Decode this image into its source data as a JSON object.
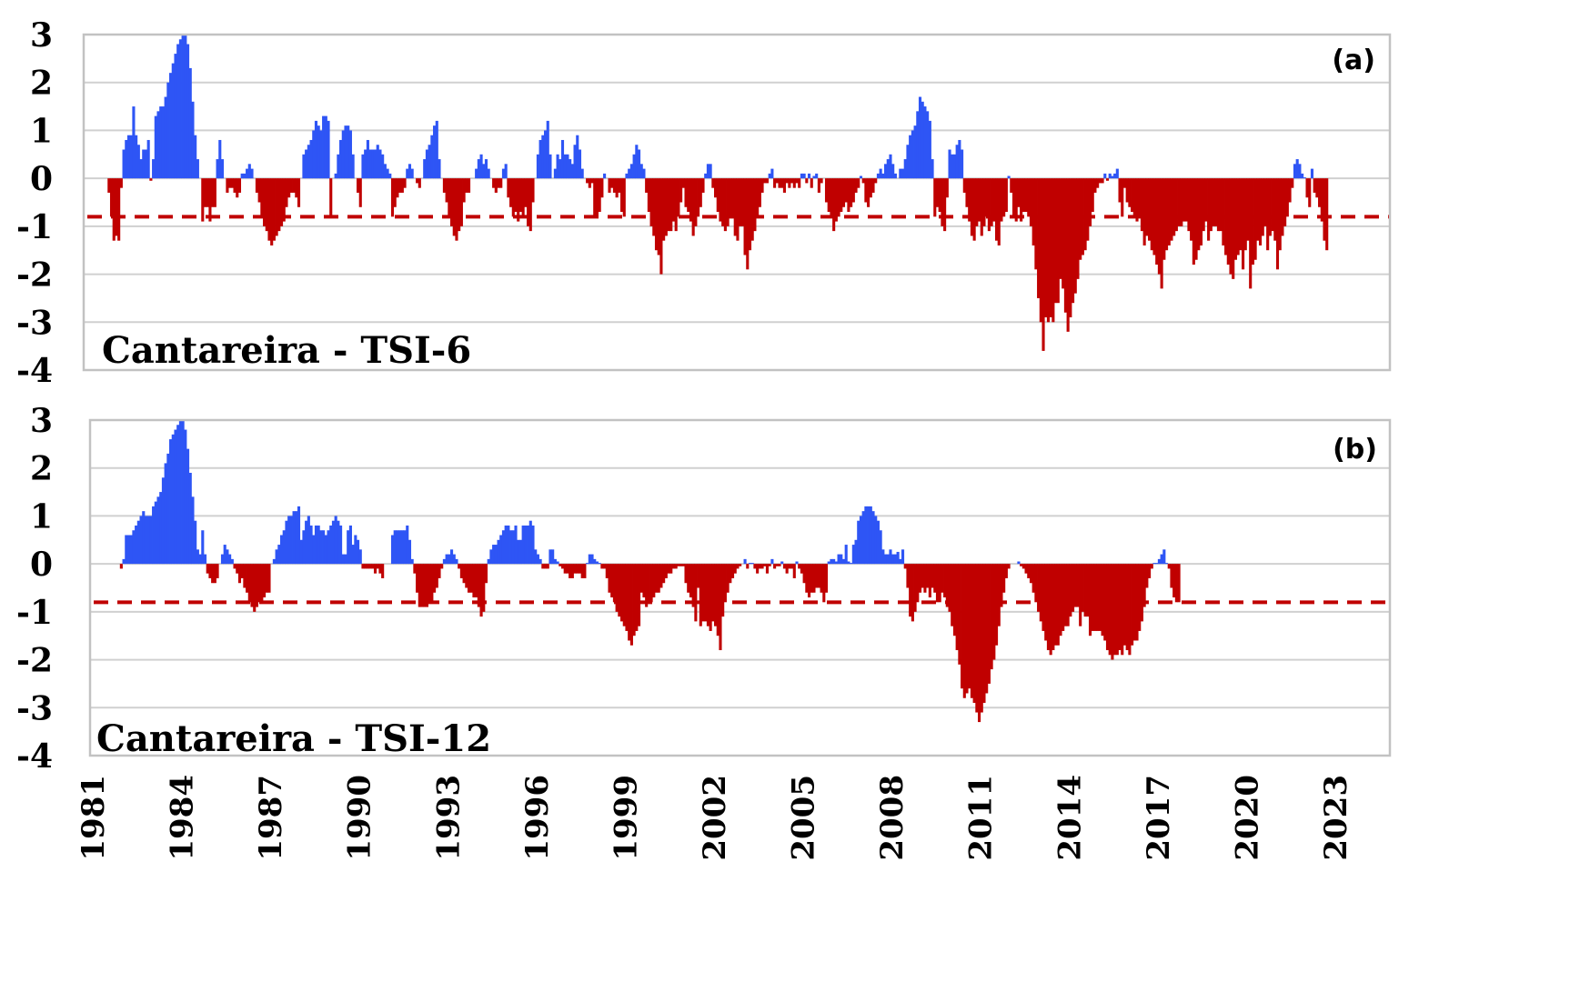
{
  "chart_data": [
    {
      "type": "bar",
      "panel_label": "(a)",
      "title": "Cantareira - TSI-6",
      "xlabel": "",
      "ylabel": "",
      "ylim": [
        -4,
        3
      ],
      "yticks": [
        "3",
        "2",
        "1",
        "0",
        "-1",
        "-2",
        "-3",
        "-4"
      ],
      "xticks": [
        "1981",
        "1984",
        "1987",
        "1990",
        "1993",
        "1996",
        "1999",
        "2002",
        "2005",
        "2008",
        "2011",
        "2014",
        "2017",
        "2020",
        "2023"
      ],
      "x_start": "1981-01",
      "x_step": "month",
      "grid": true,
      "threshold": {
        "value": -0.8,
        "style": "dashed",
        "color": "#c00000"
      },
      "colors": {
        "positive": "#2e55f5",
        "negative": "#c00000"
      },
      "values": [
        0,
        0,
        0,
        0,
        0,
        0,
        -0.3,
        -0.8,
        -1.3,
        -1.2,
        -1.3,
        -0.2,
        0.6,
        0.8,
        0.9,
        0.9,
        1.5,
        0.9,
        0.7,
        0.4,
        0.6,
        0.6,
        0.8,
        -0.05,
        0.4,
        1.3,
        1.4,
        1.5,
        1.5,
        1.7,
        2.0,
        2.2,
        2.4,
        2.6,
        2.8,
        2.9,
        3.0,
        3.0,
        2.8,
        2.3,
        1.6,
        0.9,
        0.4,
        0.0,
        -0.9,
        -0.6,
        -0.6,
        -0.9,
        -0.6,
        -0.6,
        0.4,
        0.8,
        0.4,
        0,
        -0.3,
        -0.2,
        -0.2,
        -0.3,
        -0.4,
        -0.3,
        0.1,
        0.1,
        0.2,
        0.3,
        0.2,
        0,
        -0.3,
        -0.5,
        -0.8,
        -1.0,
        -1.1,
        -1.3,
        -1.4,
        -1.3,
        -1.2,
        -1.1,
        -1.0,
        -0.9,
        -0.6,
        -0.4,
        -0.3,
        -0.3,
        -0.4,
        -0.6,
        0,
        0.5,
        0.6,
        0.7,
        0.8,
        1.0,
        1.2,
        1.1,
        1.0,
        1.3,
        1.3,
        1.2,
        -0.8,
        0,
        0.1,
        0.5,
        0.8,
        1.0,
        1.1,
        1.1,
        1.0,
        0.5,
        0,
        -0.3,
        -0.6,
        0.5,
        0.6,
        0.8,
        0.6,
        0.6,
        0.6,
        0.7,
        0.6,
        0.5,
        0.3,
        0.2,
        0.1,
        -0.8,
        -0.6,
        -0.4,
        -0.3,
        -0.3,
        -0.2,
        0.2,
        0.3,
        0.2,
        0,
        -0.1,
        -0.2,
        0,
        0.4,
        0.6,
        0.7,
        0.9,
        1.1,
        1.2,
        0.4,
        0,
        -0.3,
        -0.5,
        -0.8,
        -1.0,
        -1.2,
        -1.3,
        -1.1,
        -1.0,
        -0.5,
        -0.3,
        -0.3,
        0,
        0,
        0.2,
        0.4,
        0.5,
        0.3,
        0.4,
        0.2,
        0,
        -0.2,
        -0.3,
        -0.2,
        -0.2,
        0.2,
        0.3,
        -0.4,
        -0.6,
        -0.8,
        -0.7,
        -0.9,
        -0.7,
        -0.8,
        -0.6,
        -1.0,
        -1.1,
        -0.5,
        0,
        0.5,
        0.8,
        0.9,
        1.0,
        1.2,
        0.5,
        0,
        0.2,
        0.5,
        0.4,
        0.8,
        0.5,
        0.5,
        0.4,
        0.3,
        0.7,
        0.9,
        0.6,
        0.2,
        0,
        -0.1,
        -0.2,
        -0.1,
        -0.8,
        -0.8,
        -0.7,
        -0.4,
        0.1,
        0,
        -0.3,
        -0.2,
        -0.3,
        -0.4,
        -0.3,
        -0.7,
        -0.8,
        0.1,
        0.2,
        0.3,
        0.5,
        0.7,
        0.6,
        0.3,
        0.2,
        -0.3,
        -0.7,
        -1.0,
        -1.2,
        -1.5,
        -1.6,
        -2.0,
        -1.3,
        -1.2,
        -1.1,
        -1.1,
        -0.9,
        -1.1,
        -0.8,
        -0.5,
        -0.2,
        -0.6,
        -0.7,
        -0.9,
        -1.2,
        -1.0,
        -0.8,
        -0.6,
        -0.3,
        0.1,
        0.3,
        0.3,
        -0.2,
        -0.4,
        -0.7,
        -0.9,
        -1.0,
        -1.1,
        -1.0,
        -0.8,
        -0.8,
        -1.2,
        -1.3,
        -1.0,
        -1.0,
        -1.6,
        -1.9,
        -1.5,
        -1.3,
        -1.1,
        -0.8,
        -0.6,
        -0.3,
        -0.1,
        -0.1,
        0.1,
        0.2,
        -0.2,
        -0.1,
        -0.2,
        -0.2,
        -0.3,
        -0.1,
        -0.2,
        -0.1,
        -0.2,
        -0.1,
        -0.2,
        0.1,
        0.1,
        -0.1,
        0.1,
        -0.2,
        0.05,
        0.1,
        -0.3,
        -0.1,
        0,
        -0.5,
        -0.7,
        -0.8,
        -1.1,
        -0.9,
        -0.8,
        -0.7,
        -0.6,
        -0.5,
        -0.7,
        -0.6,
        -0.5,
        -0.3,
        -0.2,
        0.05,
        -0.1,
        -0.5,
        -0.6,
        -0.4,
        -0.3,
        -0.1,
        0.1,
        0.2,
        0.1,
        0.3,
        0.4,
        0.5,
        0.3,
        0.1,
        0,
        0.2,
        0.2,
        0.4,
        0.7,
        0.9,
        1.0,
        1.1,
        1.4,
        1.7,
        1.6,
        1.5,
        1.4,
        1.2,
        0.4,
        -0.8,
        -0.6,
        -0.7,
        -1.0,
        -1.1,
        -0.4,
        0.6,
        0.5,
        0.5,
        0.7,
        0.8,
        0.6,
        -0.3,
        -0.6,
        -0.9,
        -1.2,
        -1.3,
        -1.0,
        -0.9,
        -1.2,
        -1.0,
        -0.8,
        -1.1,
        -1.0,
        -0.9,
        -1.3,
        -1.4,
        -0.9,
        -0.8,
        -0.7,
        0.05,
        -0.3,
        -0.8,
        -0.9,
        -0.6,
        -0.9,
        -0.7,
        -0.7,
        -0.8,
        -1.0,
        -1.4,
        -1.9,
        -2.5,
        -3.0,
        -3.6,
        -2.9,
        -3.0,
        -2.9,
        -3.0,
        -2.6,
        -2.6,
        -2.1,
        -2.3,
        -2.8,
        -3.2,
        -2.9,
        -2.6,
        -2.4,
        -2.1,
        -1.7,
        -1.6,
        -1.5,
        -1.3,
        -1.0,
        -0.7,
        -0.3,
        -0.2,
        -0.1,
        -0.1,
        0.1,
        -0.05,
        0.1,
        0.05,
        0.1,
        0.2,
        -0.5,
        -0.8,
        -0.2,
        -0.5,
        -0.6,
        -0.7,
        -0.8,
        -0.9,
        -0.8,
        -1.1,
        -1.4,
        -1.2,
        -1.3,
        -1.5,
        -1.6,
        -1.8,
        -2.0,
        -2.3,
        -1.7,
        -1.5,
        -1.4,
        -1.3,
        -1.2,
        -1.1,
        -1.0,
        -1.0,
        -0.9,
        -0.9,
        -1.1,
        -1.3,
        -1.8,
        -1.7,
        -1.5,
        -1.4,
        -1.1,
        -0.9,
        -1.3,
        -1.1,
        -1.0,
        -1.0,
        -1.1,
        -1.1,
        -1.4,
        -1.6,
        -1.8,
        -2.0,
        -2.1,
        -1.7,
        -1.6,
        -1.5,
        -1.9,
        -1.5,
        -1.3,
        -2.3,
        -1.8,
        -1.7,
        -1.3,
        -1.4,
        -1.2,
        -1.0,
        -1.5,
        -1.2,
        -1.1,
        -1.3,
        -1.9,
        -1.5,
        -1.2,
        -1.0,
        -0.8,
        -0.5,
        -0.2,
        0.3,
        0.4,
        0.3,
        0.1,
        0.02,
        -0.4,
        -0.6,
        0.2,
        -0.3,
        -0.4,
        -0.6,
        -0.9,
        -1.3,
        -1.5
      ]
    },
    {
      "type": "bar",
      "panel_label": "(b)",
      "title": "Cantareira - TSI-12",
      "xlabel": "",
      "ylabel": "",
      "ylim": [
        -4,
        3
      ],
      "yticks": [
        "3",
        "2",
        "1",
        "0",
        "-1",
        "-2",
        "-3",
        "-4"
      ],
      "xticks": [
        "1981",
        "1984",
        "1987",
        "1990",
        "1993",
        "1996",
        "1999",
        "2002",
        "2005",
        "2008",
        "2011",
        "2014",
        "2017",
        "2020",
        "2023"
      ],
      "x_start": "1981-01",
      "x_step": "month",
      "grid": true,
      "threshold": {
        "value": -0.8,
        "style": "dashed",
        "color": "#c00000"
      },
      "colors": {
        "positive": "#2e55f5",
        "negative": "#c00000"
      },
      "values": [
        0,
        0,
        0,
        0,
        0,
        0,
        0,
        0,
        0,
        0,
        0,
        -0.1,
        0.1,
        0.6,
        0.6,
        0.6,
        0.7,
        0.8,
        0.9,
        1.0,
        1.1,
        1.0,
        1.0,
        1.0,
        1.2,
        1.3,
        1.4,
        1.5,
        1.8,
        2.1,
        2.3,
        2.6,
        2.7,
        2.8,
        2.9,
        3.0,
        3.0,
        2.8,
        2.4,
        1.9,
        1.4,
        0.9,
        0.3,
        0.2,
        0.7,
        0.2,
        -0.2,
        -0.3,
        -0.4,
        -0.4,
        -0.3,
        0,
        0.2,
        0.4,
        0.3,
        0.2,
        0.1,
        -0.1,
        -0.2,
        -0.4,
        -0.3,
        -0.5,
        -0.6,
        -0.8,
        -0.9,
        -1.0,
        -0.9,
        -0.8,
        -0.8,
        -0.7,
        -0.6,
        -0.6,
        0,
        0.1,
        0.3,
        0.4,
        0.6,
        0.7,
        0.9,
        1.0,
        1.0,
        1.1,
        1.1,
        1.2,
        0.5,
        0.7,
        0.9,
        1.0,
        0.8,
        0.6,
        0.8,
        0.8,
        0.7,
        0.7,
        0.6,
        0.7,
        0.8,
        0.9,
        1.0,
        0.9,
        0.8,
        0.2,
        0.2,
        0.7,
        0.8,
        0.4,
        0.6,
        0.5,
        0.3,
        -0.1,
        -0.1,
        -0.1,
        -0.1,
        -0.1,
        -0.2,
        -0.1,
        -0.2,
        -0.3,
        0,
        0,
        0,
        0.6,
        0.7,
        0.7,
        0.7,
        0.7,
        0.7,
        0.8,
        0.5,
        0.1,
        -0.2,
        -0.6,
        -0.9,
        -0.9,
        -0.9,
        -0.9,
        -0.8,
        -0.8,
        -0.6,
        -0.5,
        -0.3,
        -0.1,
        0.1,
        0.2,
        0.2,
        0.3,
        0.2,
        0.1,
        -0.1,
        -0.3,
        -0.4,
        -0.5,
        -0.6,
        -0.6,
        -0.7,
        -0.7,
        -0.9,
        -1.1,
        -1.0,
        -0.4,
        0.1,
        0.3,
        0.4,
        0.4,
        0.5,
        0.6,
        0.7,
        0.8,
        0.8,
        0.7,
        0.7,
        0.8,
        0.5,
        0.5,
        0.8,
        0.8,
        0.8,
        0.9,
        0.8,
        0.3,
        0.2,
        0.1,
        -0.1,
        -0.1,
        -0.1,
        0.3,
        0.3,
        0.1,
        0.05,
        -0.05,
        -0.1,
        -0.2,
        -0.2,
        -0.3,
        -0.3,
        -0.2,
        -0.2,
        -0.2,
        -0.3,
        -0.3,
        0.02,
        0.2,
        0.2,
        0.1,
        0.05,
        0.02,
        -0.1,
        -0.1,
        -0.3,
        -0.6,
        -0.7,
        -0.8,
        -1.0,
        -1.1,
        -1.2,
        -1.3,
        -1.4,
        -1.6,
        -1.7,
        -1.5,
        -1.4,
        -1.3,
        -0.6,
        -0.7,
        -0.9,
        -0.8,
        -0.8,
        -0.7,
        -0.6,
        -0.6,
        -0.5,
        -0.4,
        -0.3,
        -0.2,
        -0.2,
        -0.1,
        -0.1,
        -0.05,
        -0.05,
        -0.05,
        -0.4,
        -0.6,
        -0.7,
        -0.9,
        -1.2,
        -0.5,
        -1.3,
        -1.2,
        -1.2,
        -1.3,
        -1.4,
        -1.2,
        -1.3,
        -1.5,
        -1.8,
        -1.1,
        -0.8,
        -0.6,
        -0.4,
        -0.3,
        -0.2,
        -0.1,
        -0.05,
        0,
        0.1,
        -0.1,
        0.02,
        0.02,
        -0.1,
        -0.2,
        -0.1,
        -0.1,
        -0.05,
        -0.2,
        -0.05,
        0.1,
        -0.1,
        -0.05,
        -0.05,
        0.05,
        -0.1,
        -0.2,
        -0.1,
        -0.1,
        -0.3,
        0.05,
        -0.1,
        -0.2,
        -0.4,
        -0.6,
        -0.7,
        -0.6,
        -0.6,
        -0.5,
        -0.5,
        -0.6,
        -0.8,
        -0.6,
        0.05,
        0.1,
        0.1,
        0.05,
        0.2,
        0.2,
        0.1,
        0.4,
        0.05,
        0.02,
        0.4,
        0.5,
        0.9,
        1.0,
        1.1,
        1.2,
        1.2,
        1.2,
        1.1,
        1.0,
        0.9,
        0.7,
        0.3,
        0.2,
        0.2,
        0.3,
        0.2,
        0.2,
        0.25,
        0.1,
        0.3,
        -0.1,
        -0.5,
        -1.1,
        -1.2,
        -1.0,
        -0.8,
        -0.6,
        -0.5,
        -0.6,
        -0.5,
        -0.7,
        -0.5,
        -0.6,
        -0.8,
        -0.8,
        -0.6,
        -0.7,
        -0.9,
        -1.0,
        -1.3,
        -1.5,
        -1.8,
        -2.1,
        -2.6,
        -2.8,
        -2.7,
        -2.6,
        -2.8,
        -2.9,
        -3.1,
        -3.3,
        -3.1,
        -2.9,
        -2.7,
        -2.5,
        -2.2,
        -2.0,
        -1.7,
        -1.3,
        -0.9,
        -0.6,
        -0.3,
        -0.1,
        0,
        0,
        0,
        0.05,
        -0.05,
        -0.1,
        -0.2,
        -0.3,
        -0.4,
        -0.6,
        -0.8,
        -1.0,
        -1.2,
        -1.4,
        -1.6,
        -1.8,
        -1.9,
        -1.8,
        -1.7,
        -1.7,
        -1.5,
        -1.4,
        -1.3,
        -1.3,
        -1.1,
        -1.0,
        -0.9,
        -0.9,
        -1.3,
        -1.0,
        -1.1,
        -1.1,
        -1.5,
        -1.4,
        -1.4,
        -1.4,
        -1.4,
        -1.5,
        -1.6,
        -1.8,
        -1.9,
        -2.0,
        -1.9,
        -1.9,
        -1.8,
        -1.9,
        -1.7,
        -1.8,
        -1.9,
        -1.7,
        -1.6,
        -1.6,
        -1.4,
        -1.2,
        -0.9,
        -0.5,
        -0.3,
        -0.1,
        0.02,
        0.02,
        0.1,
        0.2,
        0.3,
        0.02,
        -0.1,
        -0.5,
        -0.7,
        -0.8,
        -0.8
      ]
    }
  ]
}
